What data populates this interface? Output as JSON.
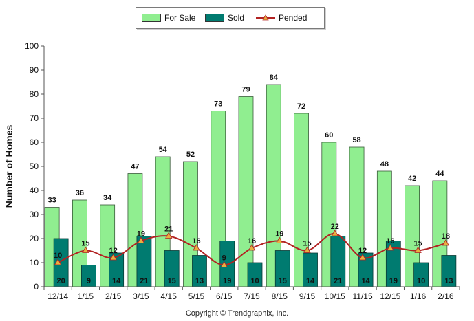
{
  "chart_data": {
    "type": "bar",
    "ylabel": "Number of Homes",
    "xlabel": "",
    "ylim": [
      0,
      100
    ],
    "yticks": [
      0,
      10,
      20,
      30,
      40,
      50,
      60,
      70,
      80,
      90,
      100
    ],
    "categories": [
      "12/14",
      "1/15",
      "2/15",
      "3/15",
      "4/15",
      "5/15",
      "6/15",
      "7/15",
      "8/15",
      "9/15",
      "10/15",
      "11/15",
      "12/15",
      "1/16",
      "2/16"
    ],
    "series": [
      {
        "name": "For Sale",
        "kind": "bar",
        "color": "#90EE90",
        "values": [
          33,
          36,
          34,
          47,
          54,
          52,
          73,
          79,
          84,
          72,
          60,
          58,
          48,
          42,
          44
        ]
      },
      {
        "name": "Sold",
        "kind": "bar",
        "color": "#007B70",
        "values": [
          20,
          9,
          14,
          21,
          15,
          13,
          19,
          10,
          15,
          14,
          21,
          14,
          19,
          10,
          13
        ]
      },
      {
        "name": "Pended",
        "kind": "line",
        "color": "#B22222",
        "marker_color": "#E8B040",
        "values": [
          10,
          15,
          12,
          19,
          21,
          16,
          9,
          16,
          19,
          15,
          22,
          12,
          16,
          15,
          18
        ]
      }
    ],
    "legend_position": "top-center",
    "grid": false
  },
  "copyright": "Copyright © Trendgraphix, Inc."
}
